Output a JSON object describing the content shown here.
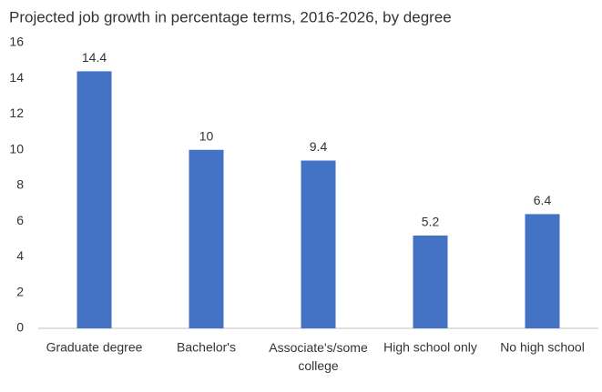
{
  "chart_data": {
    "type": "bar",
    "title": "Projected job growth in percentage terms, 2016-2026, by degree",
    "categories": [
      "Graduate degree",
      "Bachelor's",
      "Associate's/some college",
      "High school only",
      "No high school"
    ],
    "values": [
      14.4,
      10,
      9.4,
      5.2,
      6.4
    ],
    "color": "#4472c4",
    "ylim": [
      0,
      16
    ],
    "yticks": [
      0,
      2,
      4,
      6,
      8,
      10,
      12,
      14,
      16
    ],
    "grid": false
  }
}
